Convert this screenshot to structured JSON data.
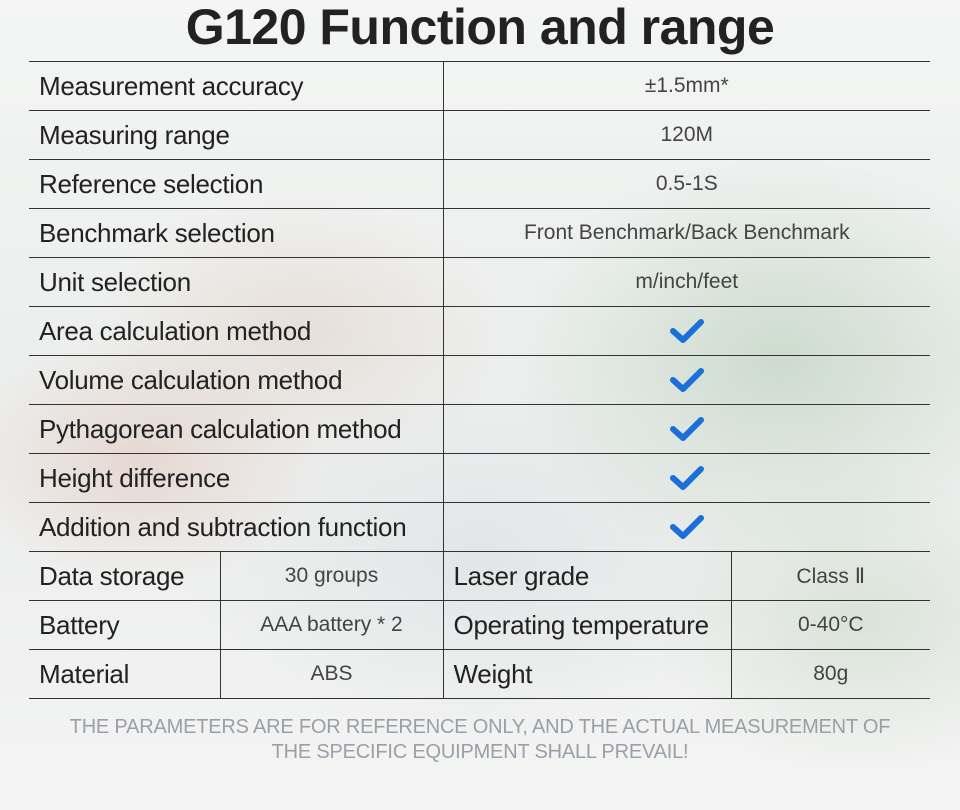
{
  "title": "G120 Function and range",
  "check_color": "#1a6fd8",
  "rows": [
    {
      "label": "Measurement accuracy",
      "value": "±1.5mm*"
    },
    {
      "label": "Measuring range",
      "value": "120M"
    },
    {
      "label": "Reference selection",
      "value": "0.5-1S"
    },
    {
      "label": "Benchmark selection",
      "value": "Front Benchmark/Back Benchmark"
    },
    {
      "label": "Unit selection",
      "value": "m/inch/feet"
    },
    {
      "label": "Area calculation method",
      "icon": "checkmark-icon"
    },
    {
      "label": "Volume calculation method",
      "icon": "checkmark-icon"
    },
    {
      "label": "Pythagorean calculation method",
      "icon": "checkmark-icon"
    },
    {
      "label": "Height difference",
      "icon": "checkmark-icon"
    },
    {
      "label": "Addition and subtraction function",
      "icon": "checkmark-icon"
    }
  ],
  "quad_rows": [
    {
      "label1": "Data storage",
      "value1": "30 groups",
      "label2": "Laser grade",
      "value2": "Class Ⅱ"
    },
    {
      "label1": "Battery",
      "value1": "AAA battery * 2",
      "label2": "Operating temperature",
      "value2": "0-40°C"
    },
    {
      "label1": "Material",
      "value1": "ABS",
      "label2": "Weight",
      "value2": "80g"
    }
  ],
  "footer": {
    "line1": "THE PARAMETERS ARE FOR REFERENCE ONLY, AND THE ACTUAL MEASUREMENT OF",
    "line2": "THE SPECIFIC EQUIPMENT SHALL PREVAIL!"
  }
}
